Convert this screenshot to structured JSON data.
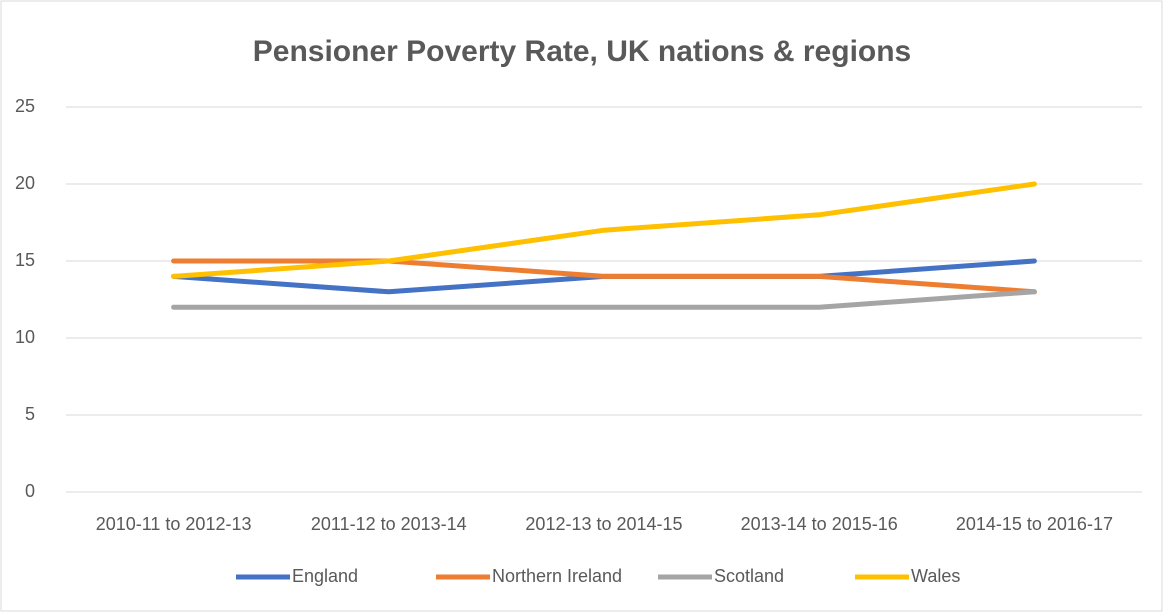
{
  "chart_data": {
    "type": "line",
    "title": "Pensioner Poverty Rate, UK nations & regions",
    "categories": [
      "2010-11 to 2012-13",
      "2011-12 to 2013-14",
      "2012-13 to 2014-15",
      "2013-14 to 2015-16",
      "2014-15 to 2016-17"
    ],
    "series": [
      {
        "name": "England",
        "color": "#4472c4",
        "values": [
          14,
          13,
          14,
          14,
          15
        ]
      },
      {
        "name": "Northern Ireland",
        "color": "#ed7d31",
        "values": [
          15,
          15,
          14,
          14,
          13
        ]
      },
      {
        "name": "Scotland",
        "color": "#a5a5a5",
        "values": [
          12,
          12,
          12,
          12,
          13
        ]
      },
      {
        "name": "Wales",
        "color": "#ffc000",
        "values": [
          14,
          15,
          17,
          18,
          20
        ]
      }
    ],
    "ylim": [
      0,
      25
    ],
    "yticks": [
      0,
      5,
      10,
      15,
      20,
      25
    ],
    "grid": true,
    "legend": "bottom"
  }
}
